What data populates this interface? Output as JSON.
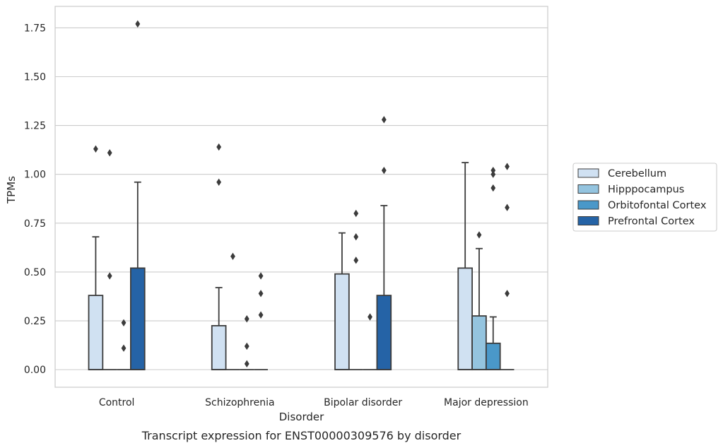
{
  "caption": "Transcript expression for ENST00000309576 by disorder",
  "chart_data": {
    "type": "box",
    "title": "",
    "xlabel": "Disorder",
    "ylabel": "TPMs",
    "ylim": [
      -0.09,
      1.86
    ],
    "yticks": [
      0.0,
      0.25,
      0.5,
      0.75,
      1.0,
      1.25,
      1.5,
      1.75
    ],
    "ytick_labels": [
      "0.00",
      "0.25",
      "0.50",
      "0.75",
      "1.00",
      "1.25",
      "1.50",
      "1.75"
    ],
    "grid": true,
    "legend_position": "right",
    "categories": [
      "Control",
      "Schizophrenia",
      "Bipolar disorder",
      "Major depression"
    ],
    "series": [
      {
        "name": "Cerebellum",
        "color": "#d0e1f2",
        "boxes": [
          {
            "q1": 0.0,
            "median": 0.0,
            "q3": 0.38,
            "whisker_low": 0.0,
            "whisker_high": 0.68,
            "outliers": [
              1.13
            ]
          },
          {
            "q1": 0.0,
            "median": 0.0,
            "q3": 0.225,
            "whisker_low": 0.0,
            "whisker_high": 0.42,
            "outliers": [
              1.14,
              0.96
            ]
          },
          {
            "q1": 0.0,
            "median": 0.0,
            "q3": 0.49,
            "whisker_low": 0.0,
            "whisker_high": 0.7,
            "outliers": []
          },
          {
            "q1": 0.0,
            "median": 0.0,
            "q3": 0.52,
            "whisker_low": 0.0,
            "whisker_high": 1.06,
            "outliers": []
          }
        ]
      },
      {
        "name": "Hipppocampus",
        "color": "#94c4df",
        "boxes": [
          {
            "q1": 0.0,
            "median": 0.0,
            "q3": 0.0,
            "whisker_low": 0.0,
            "whisker_high": 0.0,
            "outliers": [
              1.11,
              0.48
            ]
          },
          {
            "q1": 0.0,
            "median": 0.0,
            "q3": 0.0,
            "whisker_low": 0.0,
            "whisker_high": 0.0,
            "outliers": [
              0.58
            ]
          },
          {
            "q1": 0.0,
            "median": 0.0,
            "q3": 0.0,
            "whisker_low": 0.0,
            "whisker_high": 0.0,
            "outliers": [
              0.8,
              0.68,
              0.56
            ]
          },
          {
            "q1": 0.0,
            "median": 0.0,
            "q3": 0.275,
            "whisker_low": 0.0,
            "whisker_high": 0.62,
            "outliers": [
              0.69
            ]
          }
        ]
      },
      {
        "name": "Orbitofontal Cortex",
        "color": "#4a98c9",
        "boxes": [
          {
            "q1": 0.0,
            "median": 0.0,
            "q3": 0.0,
            "whisker_low": 0.0,
            "whisker_high": 0.0,
            "outliers": [
              0.24,
              0.11
            ]
          },
          {
            "q1": 0.0,
            "median": 0.0,
            "q3": 0.0,
            "whisker_low": 0.0,
            "whisker_high": 0.0,
            "outliers": [
              0.26,
              0.12,
              0.03
            ]
          },
          {
            "q1": 0.0,
            "median": 0.0,
            "q3": 0.0,
            "whisker_low": 0.0,
            "whisker_high": 0.0,
            "outliers": [
              0.27
            ]
          },
          {
            "q1": 0.0,
            "median": 0.0,
            "q3": 0.135,
            "whisker_low": 0.0,
            "whisker_high": 0.27,
            "outliers": [
              1.02,
              1.0,
              0.93
            ]
          }
        ]
      },
      {
        "name": "Prefrontal Cortex",
        "color": "#2563a6",
        "boxes": [
          {
            "q1": 0.0,
            "median": 0.0,
            "q3": 0.52,
            "whisker_low": 0.0,
            "whisker_high": 0.96,
            "outliers": [
              1.77
            ]
          },
          {
            "q1": 0.0,
            "median": 0.0,
            "q3": 0.0,
            "whisker_low": 0.0,
            "whisker_high": 0.0,
            "outliers": [
              0.48,
              0.39,
              0.28
            ]
          },
          {
            "q1": 0.0,
            "median": 0.0,
            "q3": 0.38,
            "whisker_low": 0.0,
            "whisker_high": 0.84,
            "outliers": [
              1.28,
              1.02
            ]
          },
          {
            "q1": 0.0,
            "median": 0.0,
            "q3": 0.0,
            "whisker_low": 0.0,
            "whisker_high": 0.0,
            "outliers": [
              1.04,
              0.83,
              0.39
            ]
          }
        ]
      }
    ]
  }
}
